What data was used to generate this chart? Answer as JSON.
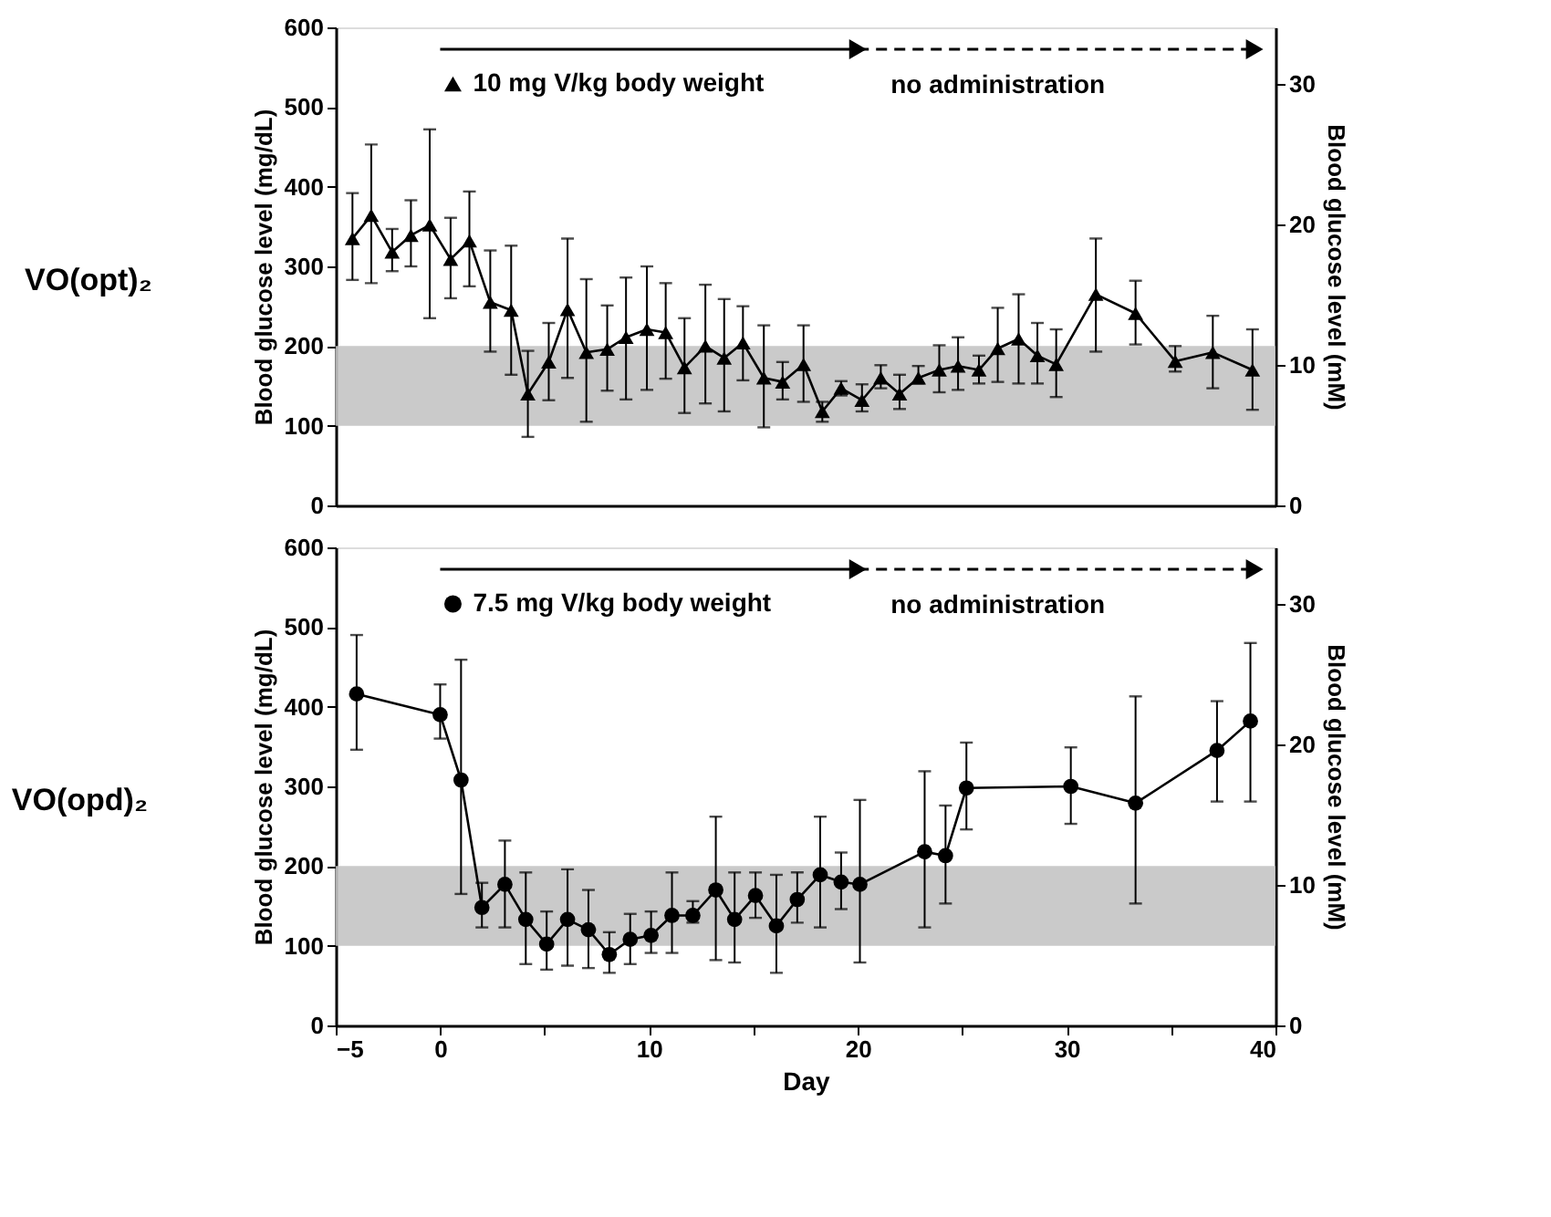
{
  "chart_data": [
    {
      "type": "line",
      "title": "VO(opt)₂",
      "ylabel": "Blood glucose level (mg/dL)",
      "y2label": "Blood glucose level (mM)",
      "marker": "triangle",
      "legend": "top",
      "annotations": [
        "no administration"
      ],
      "x": [
        -4.2,
        -3.3,
        -2.3,
        -1.4,
        -0.5,
        0.5,
        1.4,
        2.4,
        3.4,
        4.2,
        5.2,
        6.1,
        7.0,
        8.0,
        8.9,
        9.9,
        10.8,
        11.7,
        12.7,
        13.6,
        14.5,
        15.5,
        16.4,
        17.4,
        18.3,
        19.2,
        20.2,
        21.1,
        22.0,
        22.9,
        23.9,
        24.8,
        25.8,
        26.7,
        27.7,
        28.6,
        29.5,
        31.4,
        33.3,
        35.2,
        37.0,
        38.9
      ],
      "series": [
        {
          "name": "10 mg V/kg body weight",
          "color": "#000000",
          "line_style": "solid",
          "values": [
            335,
            364,
            318,
            339,
            352,
            309,
            332,
            255,
            245,
            140,
            180,
            246,
            192,
            196,
            211,
            221,
            217,
            173,
            200,
            185,
            204,
            160,
            155,
            177,
            118,
            147,
            132,
            160,
            140,
            160,
            170,
            175,
            170,
            197,
            209,
            188,
            177,
            265,
            241,
            181,
            192,
            170
          ],
          "errors": [
            [
              283,
              392
            ],
            [
              279,
              453
            ],
            [
              294,
              347
            ],
            [
              300,
              383
            ],
            [
              235,
              472
            ],
            [
              260,
              361
            ],
            [
              275,
              394
            ],
            [
              193,
              320
            ],
            [
              164,
              326
            ],
            [
              86,
              194
            ],
            [
              132,
              229
            ],
            [
              160,
              335
            ],
            [
              105,
              284
            ],
            [
              144,
              251
            ],
            [
              133,
              286
            ],
            [
              145,
              300
            ],
            [
              159,
              279
            ],
            [
              116,
              235
            ],
            [
              128,
              277
            ],
            [
              118,
              259
            ],
            [
              157,
              250
            ],
            [
              98,
              226
            ],
            [
              133,
              180
            ],
            [
              130,
              226
            ],
            [
              105,
              130
            ],
            [
              138,
              156
            ],
            [
              118,
              152
            ],
            [
              147,
              176
            ],
            [
              121,
              164
            ],
            [
              153,
              175
            ],
            [
              142,
              201
            ],
            [
              145,
              211
            ],
            [
              153,
              188
            ],
            [
              155,
              248
            ],
            [
              153,
              265
            ],
            [
              153,
              229
            ],
            [
              136,
              221
            ],
            [
              193,
              335
            ],
            [
              202,
              282
            ],
            [
              168,
              200
            ],
            [
              147,
              238
            ],
            [
              120,
              221
            ]
          ]
        }
      ],
      "xlim": [
        -5,
        40
      ],
      "ylim": [
        0,
        600
      ],
      "yticks": [
        0,
        100,
        200,
        300,
        400,
        500,
        600
      ],
      "y2lim": [
        0,
        34
      ],
      "y2ticks": [
        0,
        10,
        20,
        30
      ],
      "bands": [
        {
          "axis": "y",
          "from": 100,
          "to": 200,
          "color": "#c4c4c4"
        }
      ]
    },
    {
      "type": "line",
      "title": "VO(opd)₂",
      "xlabel": "Day",
      "ylabel": "Blood glucose level (mg/dL)",
      "y2label": "Blood glucose level (mM)",
      "marker": "circle",
      "legend": "top",
      "annotations": [
        "no administration"
      ],
      "x": [
        -4.0,
        0,
        1.0,
        2.0,
        3.1,
        4.1,
        5.1,
        6.1,
        7.1,
        8.1,
        9.1,
        10.1,
        11.1,
        12.1,
        13.2,
        14.1,
        15.1,
        16.1,
        17.1,
        18.2,
        19.2,
        20.1,
        23.2,
        24.2,
        25.2,
        30.2,
        33.3,
        37.2,
        38.8
      ],
      "series": [
        {
          "name": "7.5 mg V/kg body weight",
          "color": "#000000",
          "line_style": "solid",
          "values": [
            416,
            390,
            308,
            148,
            177,
            133,
            102,
            133,
            120,
            89,
            108,
            113,
            138,
            138,
            170,
            133,
            163,
            125,
            158,
            189,
            180,
            177,
            218,
            213,
            298,
            300,
            279,
            345,
            382
          ],
          "errors": [
            [
              346,
              490
            ],
            [
              360,
              428
            ],
            [
              165,
              459
            ],
            [
              123,
              179
            ],
            [
              123,
              232
            ],
            [
              77,
              192
            ],
            [
              70,
              143
            ],
            [
              75,
              196
            ],
            [
              72,
              170
            ],
            [
              66,
              117
            ],
            [
              77,
              140
            ],
            [
              91,
              143
            ],
            [
              91,
              192
            ],
            [
              129,
              156
            ],
            [
              82,
              262
            ],
            [
              79,
              192
            ],
            [
              135,
              192
            ],
            [
              66,
              189
            ],
            [
              129,
              192
            ],
            [
              123,
              262
            ],
            [
              146,
              217
            ],
            [
              79,
              283
            ],
            [
              123,
              319
            ],
            [
              153,
              276
            ],
            [
              246,
              355
            ],
            [
              253,
              349
            ],
            [
              153,
              413
            ],
            [
              281,
              407
            ],
            [
              281,
              480
            ]
          ]
        }
      ],
      "xlim": [
        -5,
        40
      ],
      "xticks": [
        -5,
        0,
        {
          "value": 5,
          "label": null
        },
        10,
        {
          "value": 15,
          "label": null
        },
        20,
        {
          "value": 25,
          "label": null
        },
        30,
        {
          "value": 35,
          "label": null
        },
        40
      ],
      "ylim": [
        0,
        600
      ],
      "yticks": [
        0,
        100,
        200,
        300,
        400,
        500,
        600
      ],
      "y2lim": [
        0,
        34
      ],
      "y2ticks": [
        0,
        10,
        20,
        30
      ],
      "bands": [
        {
          "axis": "y",
          "from": 100,
          "to": 200,
          "color": "#c4c4c4"
        }
      ]
    }
  ]
}
